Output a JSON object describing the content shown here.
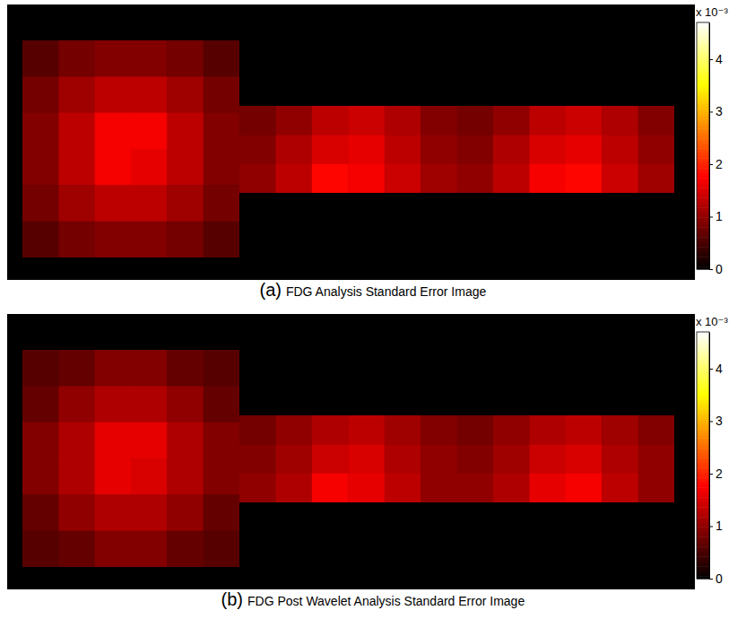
{
  "chart_data": [
    {
      "type": "heatmap",
      "panel": "(a)",
      "title": "FDG Analysis Standard Error Image",
      "regions": [
        {
          "cells": [
            [
              0.6,
              0.8,
              0.9,
              0.9,
              0.8,
              0.6
            ],
            [
              0.8,
              1.1,
              1.3,
              1.3,
              1.1,
              0.8
            ],
            [
              0.9,
              1.3,
              1.7,
              1.7,
              1.3,
              0.9
            ],
            [
              0.9,
              1.3,
              1.7,
              1.6,
              1.3,
              0.9
            ],
            [
              0.8,
              1.1,
              1.3,
              1.3,
              1.1,
              0.8
            ],
            [
              0.6,
              0.8,
              0.9,
              0.9,
              0.8,
              0.6
            ]
          ]
        },
        {
          "cells": [
            [
              0.8,
              1.0,
              1.3,
              1.4,
              1.2,
              0.9,
              0.8,
              1.0,
              1.3,
              1.4,
              1.2,
              0.9
            ],
            [
              0.9,
              1.2,
              1.5,
              1.6,
              1.3,
              1.0,
              0.9,
              1.2,
              1.5,
              1.6,
              1.3,
              1.0
            ],
            [
              1.0,
              1.3,
              1.8,
              1.7,
              1.4,
              1.1,
              1.0,
              1.3,
              1.7,
              1.8,
              1.4,
              1.1
            ]
          ]
        }
      ],
      "colorbar": {
        "label": "x 10⁻³",
        "range": [
          0,
          4.7
        ],
        "ticks": [
          0,
          1,
          2,
          3,
          4
        ]
      }
    },
    {
      "type": "heatmap",
      "panel": "(b)",
      "title": "FDG Post Wavelet Analysis Standard Error Image",
      "regions": [
        {
          "cells": [
            [
              0.6,
              0.7,
              0.9,
              0.9,
              0.7,
              0.6
            ],
            [
              0.7,
              1.0,
              1.2,
              1.2,
              1.0,
              0.7
            ],
            [
              0.9,
              1.2,
              1.6,
              1.6,
              1.2,
              0.9
            ],
            [
              0.9,
              1.2,
              1.6,
              1.5,
              1.2,
              0.9
            ],
            [
              0.7,
              1.0,
              1.2,
              1.2,
              1.0,
              0.7
            ],
            [
              0.6,
              0.7,
              0.9,
              0.9,
              0.7,
              0.6
            ]
          ]
        },
        {
          "cells": [
            [
              0.8,
              1.0,
              1.2,
              1.3,
              1.1,
              0.9,
              0.8,
              1.0,
              1.2,
              1.3,
              1.1,
              0.9
            ],
            [
              0.9,
              1.1,
              1.4,
              1.5,
              1.2,
              1.0,
              0.9,
              1.1,
              1.4,
              1.5,
              1.2,
              1.0
            ],
            [
              1.0,
              1.2,
              1.7,
              1.6,
              1.3,
              1.0,
              1.0,
              1.2,
              1.6,
              1.7,
              1.3,
              1.0
            ]
          ]
        }
      ],
      "colorbar": {
        "label": "x 10⁻³",
        "range": [
          0,
          4.7
        ],
        "ticks": [
          0,
          1,
          2,
          3,
          4
        ]
      }
    }
  ]
}
